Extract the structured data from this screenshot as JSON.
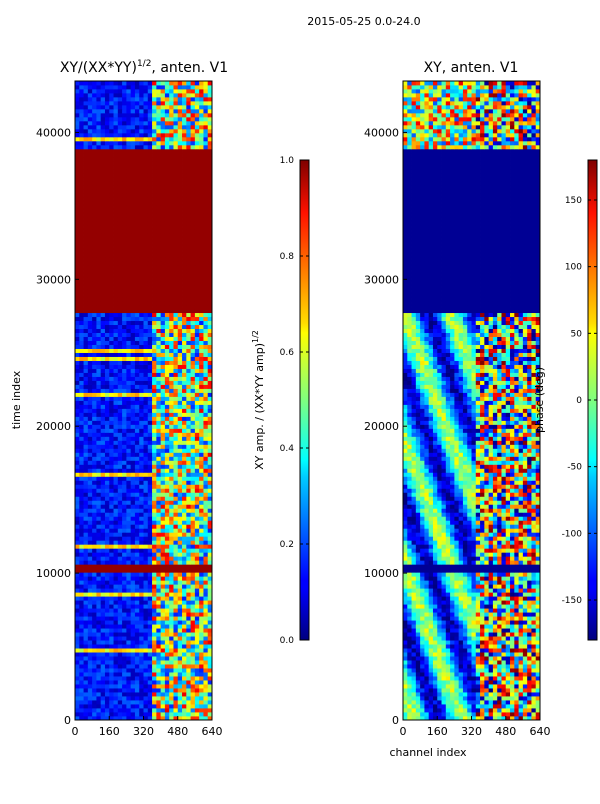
{
  "figure_title": "2015-05-25 0.0-24.0",
  "chart_data": [
    {
      "type": "heatmap",
      "title": "XY/(XX*YY)",
      "title_sup": "1/2",
      "title_suffix": ", anten. V1",
      "xlabel": "",
      "ylabel": "time index",
      "xlim": [
        0,
        640
      ],
      "ylim": [
        0,
        43500
      ],
      "xticks": [
        "0",
        "160",
        "320",
        "480",
        "640"
      ],
      "yticks": [
        "0",
        "10000",
        "20000",
        "30000",
        "40000"
      ],
      "colorbar": {
        "label": "XY amp. / (XX*YY amp)",
        "label_sup": "1/2",
        "range": [
          0.0,
          1.0
        ],
        "ticks": [
          "0.0",
          "0.2",
          "0.4",
          "0.6",
          "0.8",
          "1.0"
        ],
        "colormap": "jet"
      },
      "bands": [
        {
          "t0": 27600,
          "t1": 38800,
          "value": 1.0
        },
        {
          "t0": 10150,
          "t1": 10600,
          "value": 1.0
        }
      ],
      "baseline_value": 0.12
    },
    {
      "type": "heatmap",
      "title": "XY, anten. V1",
      "xlabel": "channel index",
      "ylabel": "",
      "xlim": [
        0,
        640
      ],
      "ylim": [
        0,
        43500
      ],
      "xticks": [
        "0",
        "160",
        "320",
        "480",
        "640"
      ],
      "yticks": [
        "0",
        "10000",
        "20000",
        "30000",
        "40000"
      ],
      "colorbar": {
        "label": "phase (deg)",
        "range": [
          -180,
          180
        ],
        "ticks": [
          "-150",
          "-100",
          "-50",
          "0",
          "50",
          "100",
          "150"
        ],
        "tick_values": [
          -150,
          -100,
          -50,
          0,
          50,
          100,
          150
        ],
        "colormap": "jet"
      },
      "bands": [
        {
          "t0": 27600,
          "t1": 38800,
          "value": -180
        },
        {
          "t0": 10150,
          "t1": 10600,
          "value": -180
        }
      ]
    }
  ],
  "colors": {
    "jet_low": "#00007f",
    "jet_high": "#7f0000",
    "axis": "#000000"
  }
}
